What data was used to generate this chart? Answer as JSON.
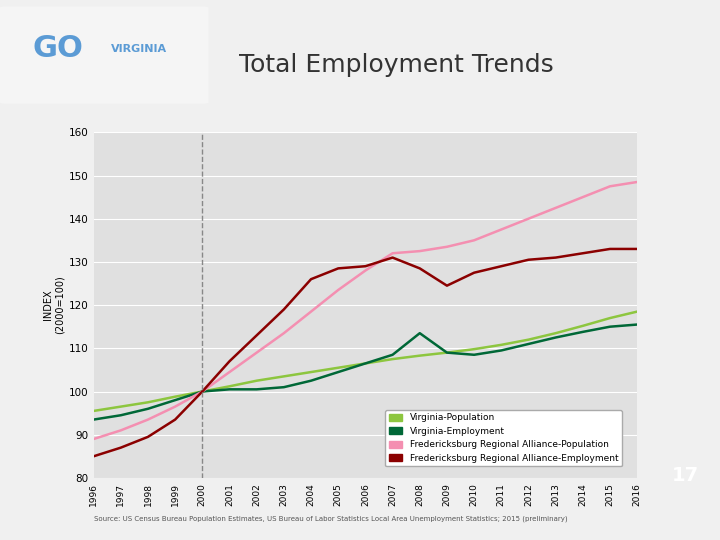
{
  "title": "Total Employment Trends",
  "ylabel": "INDEX\n(2000=100)",
  "source_text": "Source: US Census Bureau Population Estimates, US Bureau of Labor Statistics Local Area Unemployment Statistics; 2015 (preliminary)",
  "years": [
    1996,
    1997,
    1998,
    1999,
    2000,
    2001,
    2002,
    2003,
    2004,
    2005,
    2006,
    2007,
    2008,
    2009,
    2010,
    2011,
    2012,
    2013,
    2014,
    2015,
    2016
  ],
  "va_population": [
    95.5,
    96.5,
    97.5,
    98.8,
    100,
    101.2,
    102.5,
    103.5,
    104.5,
    105.5,
    106.5,
    107.5,
    108.3,
    109.0,
    109.8,
    110.8,
    112.0,
    113.5,
    115.2,
    117.0,
    118.5
  ],
  "va_employment": [
    93.5,
    94.5,
    96.0,
    98.0,
    100,
    100.5,
    100.5,
    101.0,
    102.5,
    104.5,
    106.5,
    108.5,
    113.5,
    109.0,
    108.5,
    109.5,
    111.0,
    112.5,
    113.8,
    115.0,
    115.5
  ],
  "frk_population": [
    89.0,
    91.0,
    93.5,
    96.5,
    100,
    104.5,
    109.0,
    113.5,
    118.5,
    123.5,
    128.0,
    132.0,
    132.5,
    133.5,
    135.0,
    137.5,
    140.0,
    142.5,
    145.0,
    147.5,
    148.5
  ],
  "frk_employment": [
    85.0,
    87.0,
    89.5,
    93.5,
    100,
    107.0,
    113.0,
    119.0,
    126.0,
    128.5,
    129.0,
    131.0,
    128.5,
    124.5,
    127.5,
    129.0,
    130.5,
    131.0,
    132.0,
    133.0,
    133.0
  ],
  "va_pop_color": "#8dc63f",
  "va_emp_color": "#006837",
  "frk_pop_color": "#f48fb1",
  "frk_emp_color": "#8b0000",
  "ylim": [
    80,
    160
  ],
  "yticks": [
    80,
    90,
    100,
    110,
    120,
    130,
    140,
    150,
    160
  ],
  "dashed_line_x": 2000,
  "bg_color": "#e0e0e0",
  "slide_bg": "#f0f0f0",
  "right_panel_color": "#4472c4",
  "page_number": "17",
  "legend_labels": [
    "Virginia-Population",
    "Virginia-Employment",
    "Fredericksburg Regional Alliance-Population",
    "Fredericksburg Regional Alliance-Employment"
  ],
  "legend_colors": [
    "#8dc63f",
    "#006837",
    "#f48fb1",
    "#8b0000"
  ]
}
